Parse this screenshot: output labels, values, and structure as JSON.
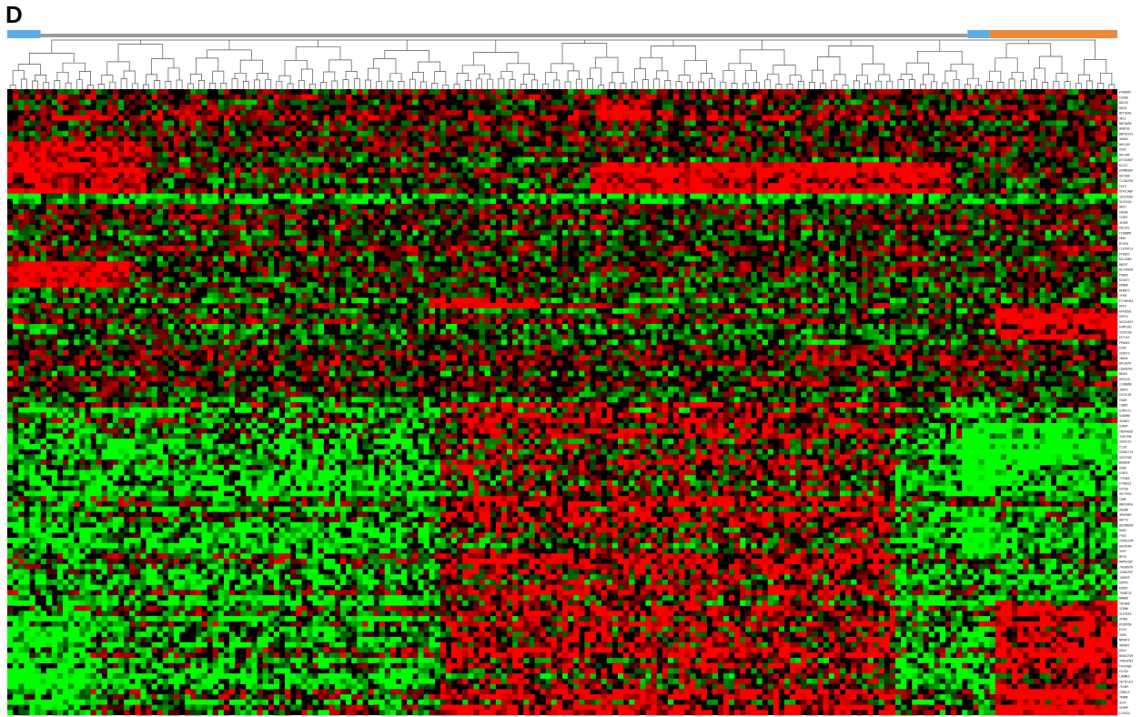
{
  "panel_label": "D",
  "colors": {
    "high": "#ff0000",
    "low": "#00ff00",
    "neutral": "#000000",
    "group_blue": "#5aaee6",
    "group_orange": "#f0883c",
    "group_gray": "#9a9a9a",
    "dendrogram": "#555555"
  },
  "chart_data": {
    "type": "heatmap",
    "title": "",
    "xlabel": "",
    "ylabel": "",
    "n_columns": 200,
    "n_rows": 120,
    "color_scale": [
      "#00ff00",
      "#000000",
      "#ff0000"
    ],
    "column_groups": [
      {
        "color": "blue",
        "from": 0,
        "to": 6
      },
      {
        "color": "gray",
        "from": 6,
        "to": 173
      },
      {
        "color": "blue",
        "from": 173,
        "to": 177
      },
      {
        "color": "orange",
        "from": 177,
        "to": 200
      }
    ],
    "column_dendrogram": true,
    "row_labels_unreadable": true,
    "blocks": [
      {
        "rows": [
          0,
          10
        ],
        "cols": [
          0,
          200
        ],
        "value": 0.2
      },
      {
        "rows": [
          2,
          6
        ],
        "cols": [
          106,
          116
        ],
        "value": 0.9
      },
      {
        "rows": [
          10,
          20
        ],
        "cols": [
          0,
          25
        ],
        "value": 0.75
      },
      {
        "rows": [
          14,
          20
        ],
        "cols": [
          105,
          170
        ],
        "value": 0.8
      },
      {
        "rows": [
          20,
          22
        ],
        "cols": [
          0,
          200
        ],
        "value": -0.6
      },
      {
        "rows": [
          33,
          38
        ],
        "cols": [
          0,
          22
        ],
        "value": 0.9
      },
      {
        "rows": [
          38,
          44
        ],
        "cols": [
          0,
          200
        ],
        "value": -0.1
      },
      {
        "rows": [
          40,
          42
        ],
        "cols": [
          76,
          96
        ],
        "value": 0.9
      },
      {
        "rows": [
          42,
          52
        ],
        "cols": [
          178,
          200
        ],
        "value": 0.85
      },
      {
        "rows": [
          48,
          60
        ],
        "cols": [
          0,
          200
        ],
        "value": 0.0
      },
      {
        "rows": [
          60,
          120
        ],
        "cols": [
          0,
          200
        ],
        "value": -0.35
      },
      {
        "rows": [
          60,
          120
        ],
        "cols": [
          78,
          160
        ],
        "value": 0.35
      },
      {
        "rows": [
          60,
          78
        ],
        "cols": [
          172,
          178
        ],
        "value": -1.0
      },
      {
        "rows": [
          64,
          72
        ],
        "cols": [
          178,
          200
        ],
        "value": -0.95
      },
      {
        "rows": [
          80,
          90
        ],
        "cols": [
          172,
          178
        ],
        "value": -0.9
      },
      {
        "rows": [
          100,
          120
        ],
        "cols": [
          0,
          15
        ],
        "value": -0.85
      },
      {
        "rows": [
          98,
          120
        ],
        "cols": [
          178,
          200
        ],
        "value": 0.7
      }
    ]
  }
}
